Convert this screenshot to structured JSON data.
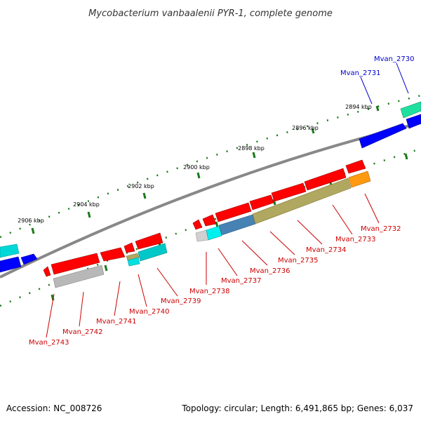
{
  "title": "Mycobacterium vanbaalenii PYR-1, complete genome",
  "footer": {
    "accession": "Accession: NC_008726",
    "stats": "Topology: circular; Length: 6,491,865 bp; Genes: 6,037"
  },
  "scale_labels": [
    "2894 kbp",
    "2896 kbp",
    "2898 kbp",
    "2900 kbp",
    "2902 kbp",
    "2904 kbp",
    "2906 kbp"
  ],
  "genes": {
    "forward": [
      "Mvan_2731",
      "Mvan_2730"
    ],
    "reverse": [
      "Mvan_2743",
      "Mvan_2742",
      "Mvan_2741",
      "Mvan_2740",
      "Mvan_2739",
      "Mvan_2738",
      "Mvan_2737",
      "Mvan_2736",
      "Mvan_2735",
      "Mvan_2734",
      "Mvan_2733",
      "Mvan_2732"
    ]
  },
  "colors": {
    "forward_label": "#0000cc",
    "reverse_label": "#cc0000",
    "cds": "#ff0000",
    "forward_feature": "#0000ff",
    "backbone": "#8c8c8c",
    "tick": "#1a7a1a"
  }
}
